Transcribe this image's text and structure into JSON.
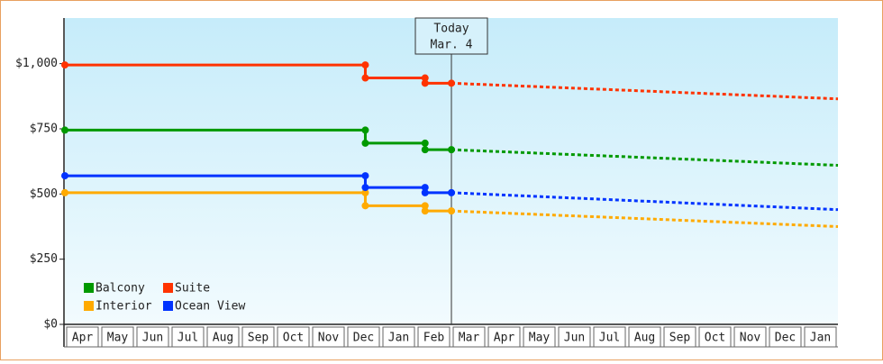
{
  "chart_data": {
    "type": "line",
    "xlim": [
      0,
      22
    ],
    "xticks": [
      {
        "value": 0.5,
        "label": "Apr"
      },
      {
        "value": 1.5,
        "label": "May"
      },
      {
        "value": 2.5,
        "label": "Jun"
      },
      {
        "value": 3.5,
        "label": "Jul"
      },
      {
        "value": 4.5,
        "label": "Aug"
      },
      {
        "value": 5.5,
        "label": "Sep"
      },
      {
        "value": 6.5,
        "label": "Oct"
      },
      {
        "value": 7.5,
        "label": "Nov"
      },
      {
        "value": 8.5,
        "label": "Dec"
      },
      {
        "value": 9.5,
        "label": "Jan"
      },
      {
        "value": 10.5,
        "label": "Feb"
      },
      {
        "value": 11.5,
        "label": "Mar"
      },
      {
        "value": 12.5,
        "label": "Apr"
      },
      {
        "value": 13.5,
        "label": "May"
      },
      {
        "value": 14.5,
        "label": "Jun"
      },
      {
        "value": 15.5,
        "label": "Jul"
      },
      {
        "value": 16.5,
        "label": "Aug"
      },
      {
        "value": 17.5,
        "label": "Sep"
      },
      {
        "value": 18.5,
        "label": "Oct"
      },
      {
        "value": 19.5,
        "label": "Nov"
      },
      {
        "value": 20.5,
        "label": "Dec"
      },
      {
        "value": 21.5,
        "label": "Jan"
      }
    ],
    "ylim": [
      0,
      1175
    ],
    "yticks": [
      {
        "value": 0,
        "label": "$0"
      },
      {
        "value": 250,
        "label": "$250"
      },
      {
        "value": 500,
        "label": "$500"
      },
      {
        "value": 750,
        "label": "$750"
      },
      {
        "value": 1000,
        "label": "$1,000"
      }
    ],
    "x": [
      0,
      8.55,
      8.55,
      10.25,
      10.25,
      11
    ],
    "projected_x": [
      11,
      22
    ],
    "annotation": {
      "lines": [
        "Today",
        "Mar. 4"
      ],
      "x": 11
    },
    "legend": "lower left",
    "series": [
      {
        "name": "Balcony",
        "color": "#009900",
        "values": [
          745,
          745,
          695,
          695,
          670,
          670
        ],
        "projected_values": [
          670,
          610
        ]
      },
      {
        "name": "Suite",
        "color": "#ff3300",
        "values": [
          995,
          995,
          945,
          945,
          925,
          925
        ],
        "projected_values": [
          925,
          865
        ]
      },
      {
        "name": "Interior",
        "color": "#ffaa00",
        "values": [
          505,
          505,
          455,
          455,
          435,
          435
        ],
        "projected_values": [
          435,
          375
        ]
      },
      {
        "name": "Ocean View",
        "color": "#0033ff",
        "values": [
          570,
          570,
          525,
          525,
          505,
          505
        ],
        "projected_values": [
          505,
          440
        ]
      }
    ]
  }
}
